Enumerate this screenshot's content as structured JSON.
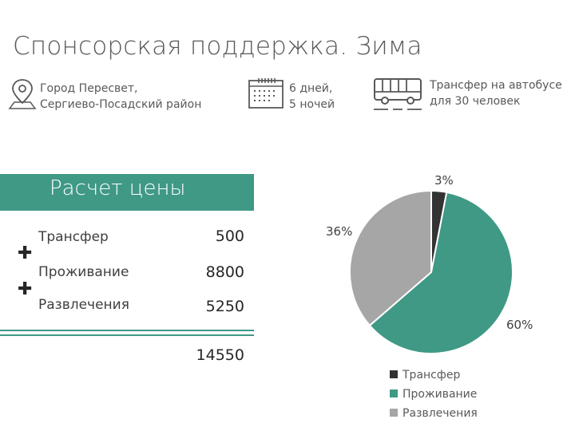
{
  "title": "Спонсорская поддержка. Зима",
  "info": {
    "location_line1": "Город Пересвет,",
    "location_line2": "Сергиево-Посадский район",
    "duration_line1": "6 дней,",
    "duration_line2": "5 ночей",
    "transfer_line1": "Трансфер на автобусе",
    "transfer_line2": "для 30 человек",
    "icons": [
      "location-pin-icon",
      "calendar-icon",
      "bus-icon"
    ]
  },
  "pricing": {
    "heading": "Расчет цены",
    "rows": [
      {
        "label": "Трансфер",
        "value": "500"
      },
      {
        "label": "Проживание",
        "value": "8800"
      },
      {
        "label": "Развлечения",
        "value": "5250"
      }
    ],
    "total": "14550"
  },
  "colors": {
    "accent": "#3f9985",
    "transfer": "#333333",
    "living": "#3f9985",
    "entertainment": "#a6a6a6"
  },
  "chart_data": {
    "type": "pie",
    "categories": [
      "Трансфер",
      "Проживание",
      "Развлечения"
    ],
    "values": [
      3,
      60,
      36
    ],
    "labels": [
      "3%",
      "60%",
      "36%"
    ],
    "colors": [
      "#333333",
      "#3f9985",
      "#a6a6a6"
    ],
    "legend_position": "bottom-right",
    "legend": [
      "Трансфер",
      "Проживание",
      "Развлечения"
    ]
  }
}
